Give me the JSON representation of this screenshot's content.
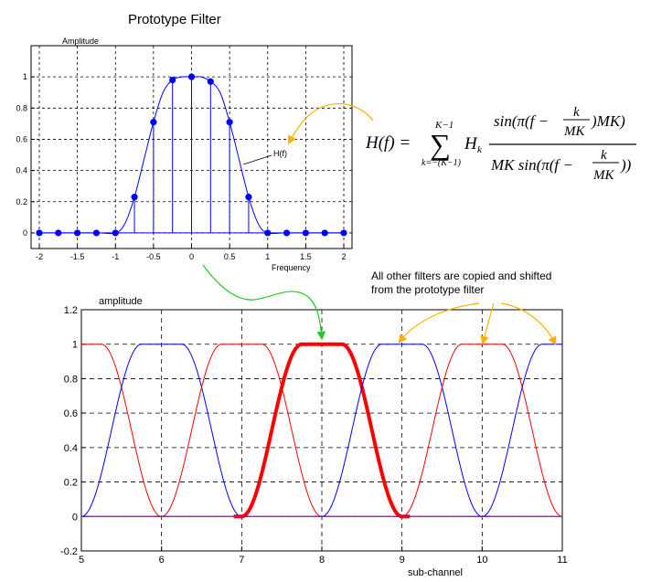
{
  "chart_data": [
    {
      "type": "line",
      "title": "Prototype Filter",
      "ylabel": "Amplitude",
      "xlabel": "Frequency",
      "xlim": [
        -2,
        2
      ],
      "ylim": [
        -0.1,
        1.2
      ],
      "x_ticks": [
        "-2",
        "-1.5",
        "-1",
        "-0.5",
        "0",
        "0.5",
        "1",
        "1.5",
        "2"
      ],
      "y_ticks": [
        "0",
        "0.2",
        "0.4",
        "0.6",
        "0.8",
        "1"
      ],
      "grid": true,
      "curve_label": "H(f)",
      "line_color": "#0000ff",
      "stem_points": {
        "x": [
          -2,
          -1.75,
          -1.5,
          -1.25,
          -1,
          -0.75,
          -0.5,
          -0.25,
          0,
          0.25,
          0.5,
          0.75,
          1,
          1.25,
          1.5,
          1.75,
          2
        ],
        "y": [
          0,
          0,
          0,
          0,
          0,
          0.23,
          0.71,
          0.98,
          1.0,
          0.97,
          0.71,
          0.23,
          0,
          0,
          0,
          0,
          0
        ]
      },
      "curve": {
        "x": [
          -2,
          -1.25,
          -1.0,
          -0.875,
          -0.75,
          -0.625,
          -0.5,
          -0.375,
          -0.25,
          -0.125,
          0,
          0.125,
          0.25,
          0.375,
          0.5,
          0.625,
          0.75,
          0.875,
          1.0,
          1.25,
          2
        ],
        "y": [
          0,
          0,
          0.0,
          0.06,
          0.23,
          0.47,
          0.71,
          0.9,
          0.98,
          1.0,
          1.0,
          1.0,
          0.97,
          0.9,
          0.71,
          0.47,
          0.23,
          0.06,
          0.0,
          0,
          0
        ]
      }
    },
    {
      "type": "line",
      "ylabel": "amplitude",
      "xlabel": "sub-channel",
      "xlim": [
        5,
        11
      ],
      "ylim": [
        -0.2,
        1.2
      ],
      "x_ticks": [
        "5",
        "6",
        "7",
        "8",
        "9",
        "10",
        "11"
      ],
      "y_ticks": [
        "-0.2",
        "0",
        "0.2",
        "0.4",
        "0.6",
        "0.8",
        "1",
        "1.2"
      ],
      "grid": true,
      "series": [
        {
          "color": "#0000ff",
          "center": 4,
          "peak": 1
        },
        {
          "color": "#ff0000",
          "center": 5,
          "peak": 1
        },
        {
          "color": "#0000ff",
          "center": 6,
          "peak": 1
        },
        {
          "color": "#ff0000",
          "center": 7,
          "peak": 1
        },
        {
          "color": "#ff0000",
          "center": 8,
          "peak": 1,
          "highlight": true
        },
        {
          "color": "#0000ff",
          "center": 9,
          "peak": 1
        },
        {
          "color": "#ff0000",
          "center": 10,
          "peak": 1
        },
        {
          "color": "#0000ff",
          "center": 11,
          "peak": 1
        }
      ]
    }
  ],
  "annotation": {
    "text_line1": "All other filters are copied and shifted",
    "text_line2": "from the prototype filter"
  },
  "formula": {
    "lhs": "H(f) =",
    "sum_top": "K−1",
    "sum_bottom": "k=−(K−1)",
    "sigma": "∑",
    "coef": "H",
    "coef_sub": "k",
    "num_a": "sin(π(f −",
    "num_b": ")MK)",
    "den_a": "MK sin(π(f −",
    "den_b": "))",
    "frac_num": "k",
    "frac_den": "MK"
  },
  "colors": {
    "blue": "#0000ff",
    "red": "#ff0000",
    "arrow_yellow": "#ffb000",
    "arrow_green": "#22cc22"
  }
}
